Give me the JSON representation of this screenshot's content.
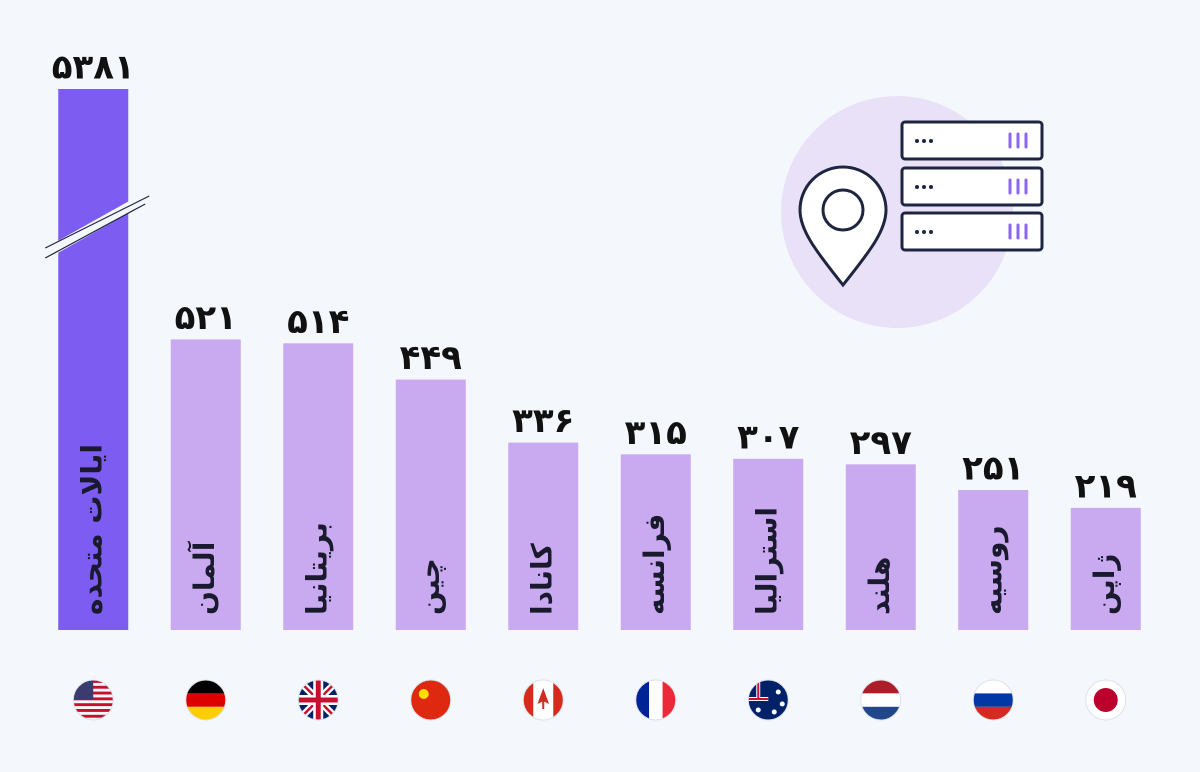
{
  "chart_data": {
    "type": "bar",
    "categories": [
      "ایالات متحده",
      "آلمان",
      "بریتانیا",
      "چین",
      "کانادا",
      "فرانسه",
      "استرالیا",
      "هلند",
      "روسیه",
      "ژاپن"
    ],
    "values": [
      5381,
      521,
      514,
      449,
      336,
      315,
      307,
      297,
      251,
      219
    ],
    "value_labels": [
      "۵۳۸۱",
      "۵۲۱",
      "۵۱۴",
      "۴۴۹",
      "۳۳۶",
      "۳۱۵",
      "۳۰۷",
      "۲۹۷",
      "۲۵۱",
      "۲۱۹"
    ],
    "colors": [
      "#7d5cf2",
      "#c9a9ef",
      "#c9a9ef",
      "#c9a9ef",
      "#c9a9ef",
      "#c9a9ef",
      "#c9a9ef",
      "#c9a9ef",
      "#c9a9ef",
      "#c9a9ef"
    ],
    "ylim": [
      0,
      970
    ]
  }
}
